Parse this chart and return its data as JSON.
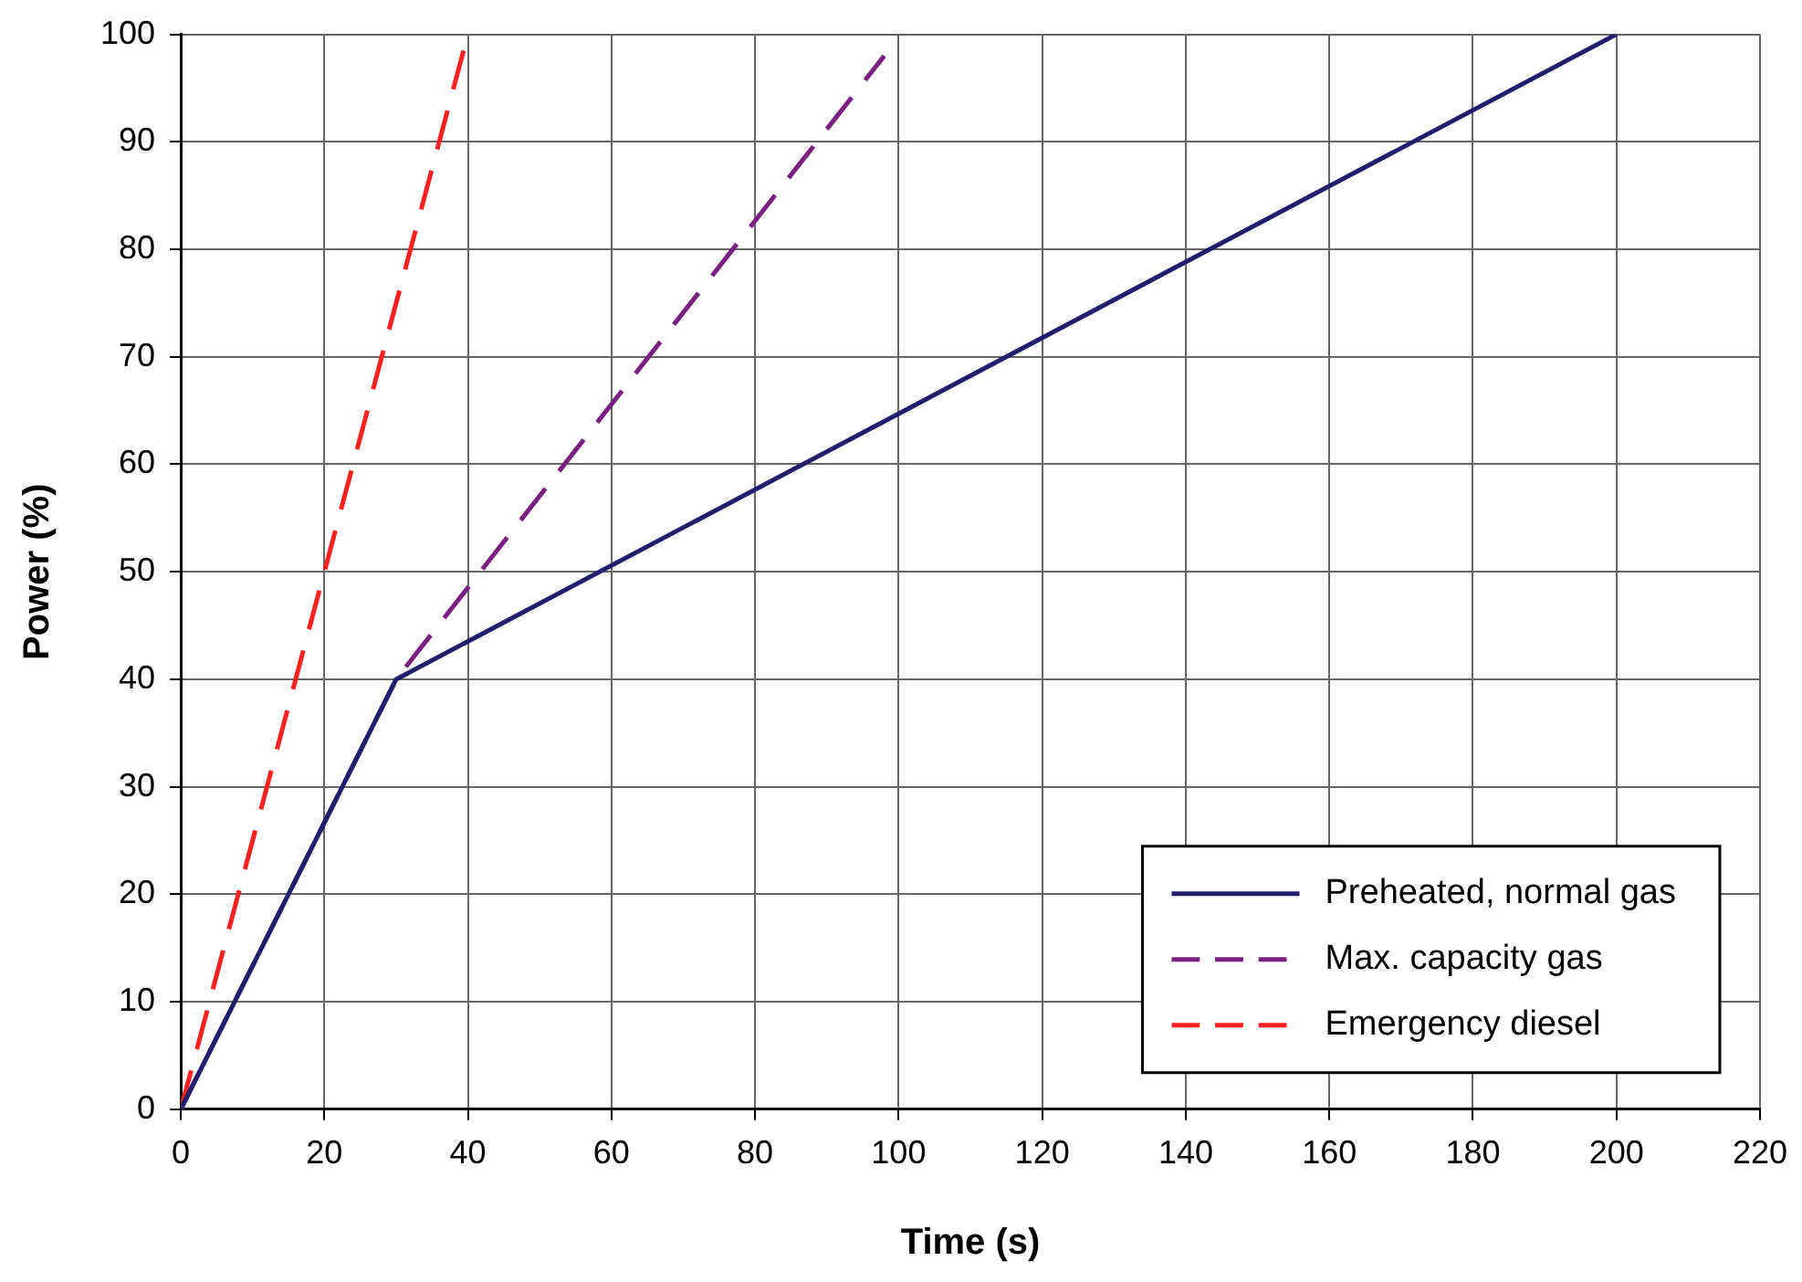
{
  "chart_data": {
    "type": "line",
    "xlabel": "Time (s)",
    "ylabel": "Power (%)",
    "xlim": [
      0,
      220
    ],
    "xticks": [
      0,
      20,
      40,
      60,
      80,
      100,
      120,
      140,
      160,
      180,
      200,
      220
    ],
    "ylim": [
      0,
      100
    ],
    "yticks": [
      0,
      10,
      20,
      30,
      40,
      50,
      60,
      70,
      80,
      90,
      100
    ],
    "grid": true,
    "legend": "bottom right",
    "marker": "none",
    "series": [
      {
        "name": "Preheated, normal gas",
        "color": "#1f1f6e",
        "line_style": "solid",
        "x": [
          0,
          30,
          200
        ],
        "values": [
          0,
          40,
          100
        ]
      },
      {
        "name": "Max. capacity gas",
        "color": "#7a2080",
        "line_style": "dashed",
        "x": [
          0,
          30,
          98
        ],
        "values": [
          0,
          40,
          98
        ]
      },
      {
        "name": "Emergency diesel",
        "color": "#ff2020",
        "line_style": "dashed",
        "x": [
          0,
          40
        ],
        "values": [
          0,
          100
        ]
      }
    ]
  }
}
